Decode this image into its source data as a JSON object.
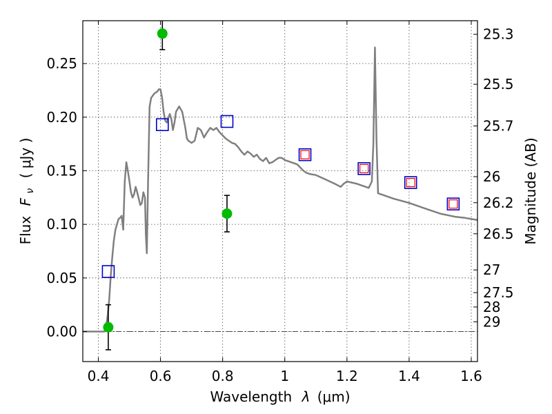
{
  "chart_data": {
    "type": "scatter",
    "xlabel_prefix": "Wavelength",
    "xlabel_symbol": "λ",
    "xlabel_unit": "(μm)",
    "ylabel_text": "Flux",
    "ylabel_symbol": "F",
    "ylabel_subscript": "ν",
    "ylabel_unit": "( μJy )",
    "ylabel_right": "Magnitude (AB)",
    "xlim": [
      0.35,
      1.62
    ],
    "ylim": [
      -0.028,
      0.29
    ],
    "x_ticks": [
      0.4,
      0.6,
      0.8,
      1.0,
      1.2,
      1.4,
      1.6
    ],
    "x_tick_labels": [
      "0.4",
      "0.6",
      "0.8",
      "1",
      "1.2",
      "1.4",
      "1.6"
    ],
    "y_ticks": [
      0.0,
      0.05,
      0.1,
      0.15,
      0.2,
      0.25
    ],
    "y_tick_labels": [
      "0.00",
      "0.05",
      "0.10",
      "0.15",
      "0.20",
      "0.25"
    ],
    "right_ticks": [
      {
        "flux": 0.2773,
        "label": "25.3"
      },
      {
        "flux": 0.2307,
        "label": "25.5"
      },
      {
        "flux": 0.1918,
        "label": "25.7"
      },
      {
        "flux": 0.1445,
        "label": "26"
      },
      {
        "flux": 0.1202,
        "label": "26.2"
      },
      {
        "flux": 0.0912,
        "label": "26.5"
      },
      {
        "flux": 0.0575,
        "label": "27"
      },
      {
        "flux": 0.0363,
        "label": "27.5"
      },
      {
        "flux": 0.0229,
        "label": "28"
      },
      {
        "flux": 0.0091,
        "label": "29"
      }
    ],
    "grid": true,
    "model_spectrum": {
      "x": [
        0.35,
        0.42,
        0.425,
        0.43,
        0.435,
        0.44,
        0.445,
        0.45,
        0.455,
        0.46,
        0.465,
        0.47,
        0.475,
        0.48,
        0.485,
        0.49,
        0.495,
        0.5,
        0.505,
        0.51,
        0.515,
        0.52,
        0.525,
        0.53,
        0.535,
        0.54,
        0.545,
        0.55,
        0.553,
        0.556,
        0.56,
        0.565,
        0.57,
        0.58,
        0.59,
        0.595,
        0.6,
        0.605,
        0.61,
        0.615,
        0.62,
        0.63,
        0.635,
        0.64,
        0.645,
        0.65,
        0.66,
        0.67,
        0.68,
        0.685,
        0.69,
        0.7,
        0.71,
        0.715,
        0.72,
        0.73,
        0.74,
        0.75,
        0.76,
        0.77,
        0.78,
        0.79,
        0.8,
        0.81,
        0.82,
        0.83,
        0.84,
        0.85,
        0.86,
        0.87,
        0.88,
        0.89,
        0.9,
        0.91,
        0.92,
        0.93,
        0.94,
        0.95,
        0.96,
        0.97,
        0.98,
        0.99,
        1.0,
        1.02,
        1.04,
        1.06,
        1.07,
        1.08,
        1.1,
        1.13,
        1.16,
        1.18,
        1.19,
        1.2,
        1.23,
        1.27,
        1.28,
        1.285,
        1.29,
        1.295,
        1.3,
        1.35,
        1.4,
        1.45,
        1.5,
        1.55,
        1.58,
        1.62
      ],
      "y": [
        0.0,
        0.0,
        0.005,
        0.015,
        0.03,
        0.052,
        0.07,
        0.085,
        0.095,
        0.1,
        0.105,
        0.106,
        0.108,
        0.095,
        0.14,
        0.158,
        0.15,
        0.14,
        0.13,
        0.125,
        0.128,
        0.135,
        0.13,
        0.124,
        0.118,
        0.12,
        0.13,
        0.125,
        0.09,
        0.073,
        0.14,
        0.21,
        0.218,
        0.222,
        0.224,
        0.226,
        0.226,
        0.218,
        0.205,
        0.197,
        0.195,
        0.203,
        0.198,
        0.188,
        0.195,
        0.205,
        0.21,
        0.205,
        0.19,
        0.18,
        0.178,
        0.176,
        0.178,
        0.184,
        0.19,
        0.188,
        0.181,
        0.186,
        0.19,
        0.188,
        0.19,
        0.186,
        0.183,
        0.18,
        0.178,
        0.176,
        0.175,
        0.172,
        0.168,
        0.165,
        0.168,
        0.166,
        0.163,
        0.165,
        0.161,
        0.159,
        0.162,
        0.157,
        0.158,
        0.16,
        0.162,
        0.162,
        0.16,
        0.158,
        0.156,
        0.15,
        0.148,
        0.147,
        0.146,
        0.142,
        0.138,
        0.135,
        0.138,
        0.14,
        0.138,
        0.134,
        0.14,
        0.175,
        0.265,
        0.18,
        0.129,
        0.124,
        0.12,
        0.115,
        0.11,
        0.107,
        0.106,
        0.104
      ]
    },
    "photometry_green": [
      {
        "x": 0.432,
        "y": 0.004,
        "err": 0.021
      },
      {
        "x": 0.606,
        "y": 0.278,
        "err": 0.015
      },
      {
        "x": 0.814,
        "y": 0.11,
        "err": 0.017
      }
    ],
    "model_boxes_blue": [
      {
        "x": 0.432,
        "y": 0.056
      },
      {
        "x": 0.606,
        "y": 0.193
      },
      {
        "x": 0.814,
        "y": 0.196
      },
      {
        "x": 1.065,
        "y": 0.165
      },
      {
        "x": 1.255,
        "y": 0.152
      },
      {
        "x": 1.405,
        "y": 0.139
      },
      {
        "x": 1.542,
        "y": 0.119
      }
    ],
    "model_boxes_red": [
      {
        "x": 1.065,
        "y": 0.165
      },
      {
        "x": 1.255,
        "y": 0.152
      },
      {
        "x": 1.405,
        "y": 0.139
      },
      {
        "x": 1.542,
        "y": 0.119
      }
    ],
    "colors": {
      "model": "#7f7f7f",
      "green": "#00bb00",
      "blue": "#0000cc",
      "red": "#ff0000"
    }
  }
}
